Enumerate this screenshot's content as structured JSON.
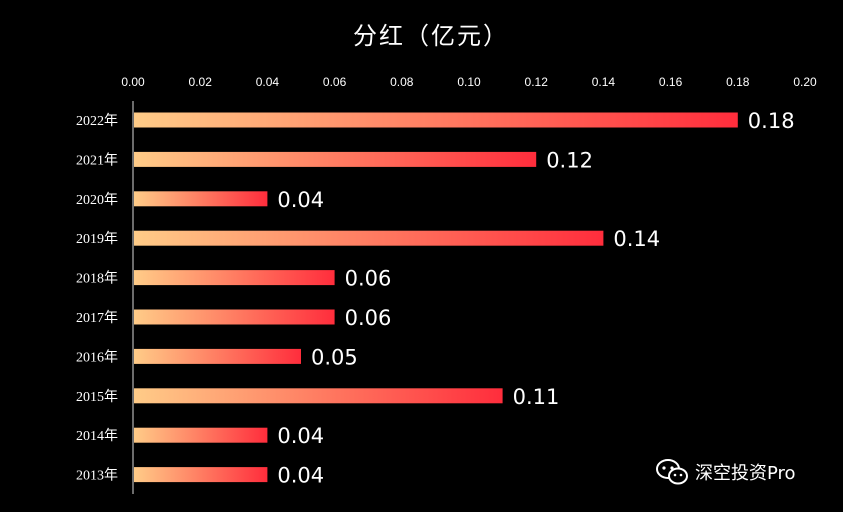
{
  "chart_data": {
    "type": "bar",
    "orientation": "horizontal",
    "title": "分红（亿元）",
    "categories": [
      "2022年",
      "2021年",
      "2020年",
      "2019年",
      "2018年",
      "2017年",
      "2016年",
      "2015年",
      "2014年",
      "2013年"
    ],
    "values": [
      0.18,
      0.12,
      0.04,
      0.14,
      0.06,
      0.06,
      0.05,
      0.11,
      0.04,
      0.04
    ],
    "value_labels": [
      "0.18",
      "0.12",
      "0.04",
      "0.14",
      "0.06",
      "0.06",
      "0.05",
      "0.11",
      "0.04",
      "0.04"
    ],
    "xlim": [
      0,
      0.2
    ],
    "x_ticks": [
      "0.00",
      "0.02",
      "0.04",
      "0.06",
      "0.08",
      "0.10",
      "0.12",
      "0.14",
      "0.16",
      "0.18",
      "0.20"
    ],
    "x_axis_position": "top",
    "grid": false,
    "legend": "none",
    "colors": {
      "bar_start": "#ffcc88",
      "bar_end": "#ff2d3c",
      "background": "#000000",
      "text": "#ffffff"
    }
  },
  "watermark": {
    "text": "深空投资Pro",
    "icon": "wechat-icon"
  }
}
